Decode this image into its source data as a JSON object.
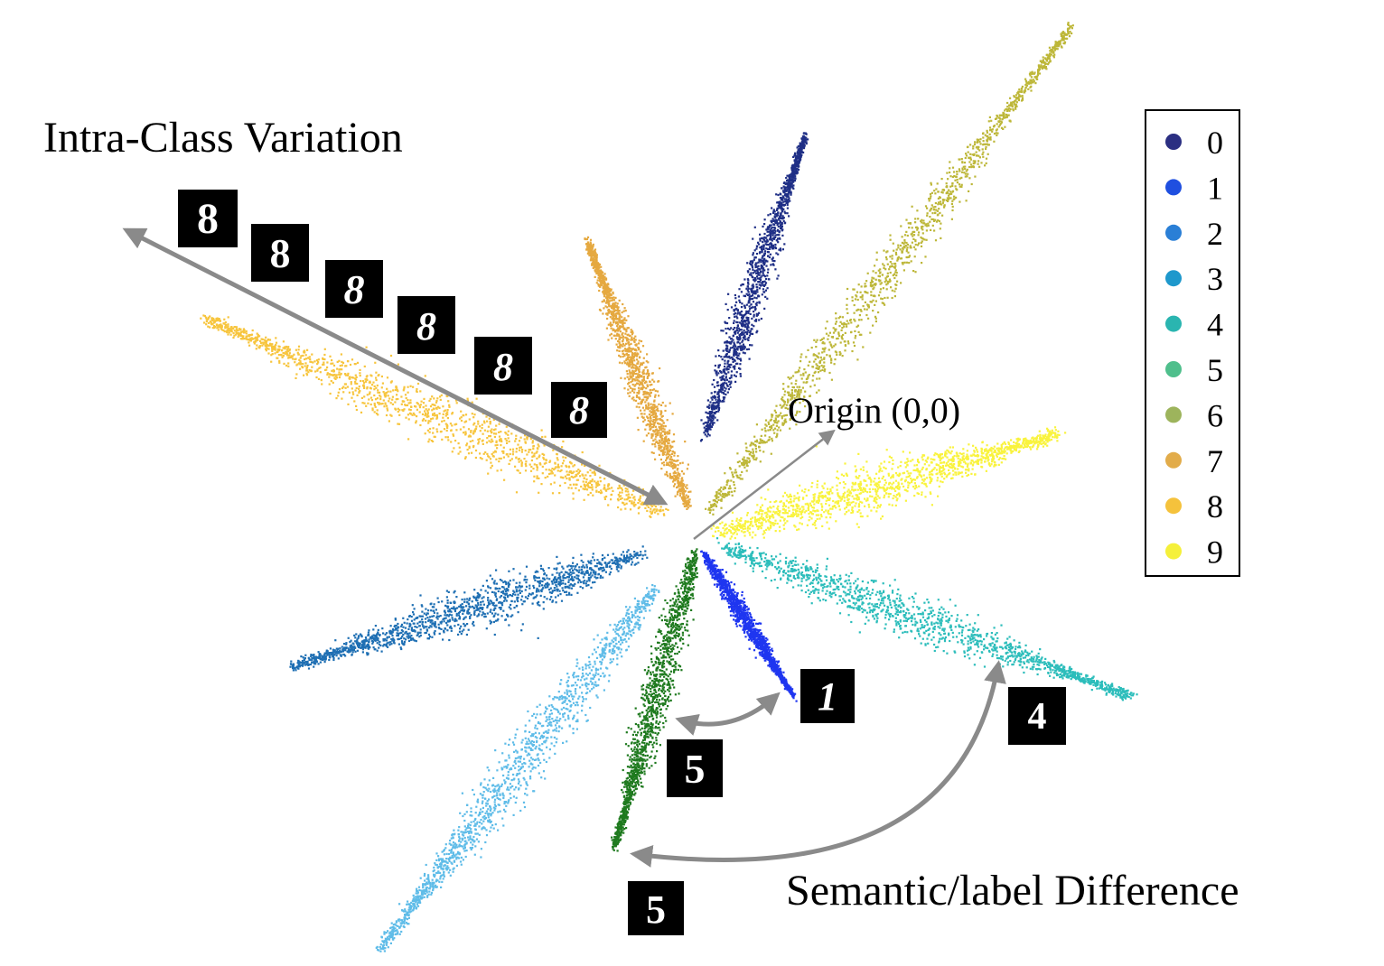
{
  "annotations": {
    "intra_class": "Intra-Class Variation",
    "origin": "Origin (0,0)",
    "semantic": "Semantic/label Difference"
  },
  "legend": [
    {
      "label": "0",
      "color": "#2b2f82"
    },
    {
      "label": "1",
      "color": "#1f4fe0"
    },
    {
      "label": "2",
      "color": "#2a7fd6"
    },
    {
      "label": "3",
      "color": "#1e98cc"
    },
    {
      "label": "4",
      "color": "#2ab5b0"
    },
    {
      "label": "5",
      "color": "#4fbf8c"
    },
    {
      "label": "6",
      "color": "#9db45c"
    },
    {
      "label": "7",
      "color": "#e2ac4a"
    },
    {
      "label": "8",
      "color": "#f5c23c"
    },
    {
      "label": "9",
      "color": "#f5f03a"
    }
  ],
  "clusters": [
    {
      "name": "cluster-0",
      "color": "#1f2f86"
    },
    {
      "name": "cluster-1",
      "color": "#1f36f0"
    },
    {
      "name": "cluster-2",
      "color": "#1e6fb3"
    },
    {
      "name": "cluster-3",
      "color": "#5fbce8"
    },
    {
      "name": "cluster-4",
      "color": "#2cbdbb"
    },
    {
      "name": "cluster-5",
      "color": "#1f7a1f"
    },
    {
      "name": "cluster-6",
      "color": "#bdb739"
    },
    {
      "name": "cluster-7",
      "color": "#e5a940"
    },
    {
      "name": "cluster-8",
      "color": "#f7c53e"
    },
    {
      "name": "cluster-9",
      "color": "#f9f33e"
    }
  ],
  "thumbnails": [
    {
      "name": "thumb-8-a",
      "digit": "8"
    },
    {
      "name": "thumb-8-b",
      "digit": "8"
    },
    {
      "name": "thumb-8-c",
      "digit": "8"
    },
    {
      "name": "thumb-8-d",
      "digit": "8"
    },
    {
      "name": "thumb-8-e",
      "digit": "8"
    },
    {
      "name": "thumb-8-f",
      "digit": "8"
    },
    {
      "name": "thumb-1",
      "digit": "1"
    },
    {
      "name": "thumb-4",
      "digit": "4"
    },
    {
      "name": "thumb-5-a",
      "digit": "5"
    },
    {
      "name": "thumb-5-b",
      "digit": "5"
    }
  ]
}
